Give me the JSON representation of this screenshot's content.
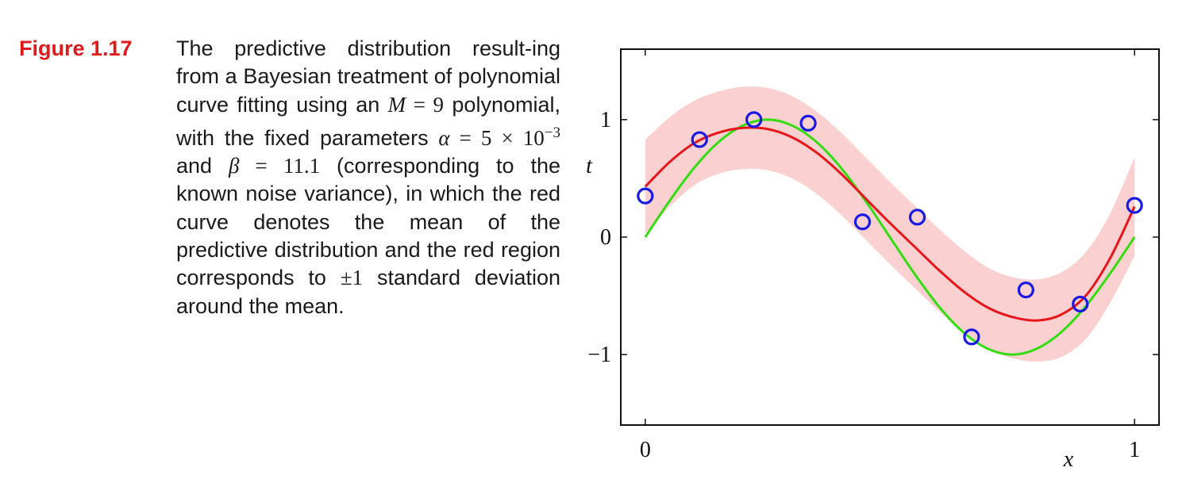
{
  "caption": {
    "label": "Figure 1.17",
    "t1": "The predictive distribution result-ing from a Bayesian treatment of polynomial curve fitting using an ",
    "m_sym": "M",
    "eq1": " = 9",
    "t2": " polynomial, with the fixed parameters ",
    "alpha_sym": "α",
    "eq2": " = 5 × 10",
    "exp": "−3",
    "t3": " and ",
    "beta_sym": "β",
    "eq3": " = 11.1",
    "t4": " (corresponding to the known noise variance), in which the red curve denotes the mean of the predictive distribution and the red region corresponds to ",
    "pm": "±1",
    "t5": " standard deviation around the mean."
  },
  "chart_data": {
    "type": "line",
    "xlabel": "x",
    "ylabel": "t",
    "xlim": [
      -0.05,
      1.05
    ],
    "ylim": [
      -1.6,
      1.6
    ],
    "xticks": [
      {
        "value": 0,
        "label": "0"
      },
      {
        "value": 1,
        "label": "1"
      }
    ],
    "yticks": [
      {
        "value": -1,
        "label": "−1"
      },
      {
        "value": 0,
        "label": "0"
      },
      {
        "value": 1,
        "label": "1"
      }
    ],
    "colors": {
      "mean": "#e8161b",
      "band": "#fbd0d0",
      "truth": "#33dd11",
      "points": "#1a1ae6"
    },
    "x": [
      0,
      0.05,
      0.1,
      0.15,
      0.2,
      0.25,
      0.3,
      0.35,
      0.4,
      0.45,
      0.5,
      0.55,
      0.6,
      0.65,
      0.7,
      0.75,
      0.8,
      0.85,
      0.9,
      0.95,
      1.0
    ],
    "series": [
      {
        "role": "mean",
        "values": [
          0.43,
          0.64,
          0.8,
          0.89,
          0.93,
          0.92,
          0.85,
          0.72,
          0.54,
          0.33,
          0.12,
          -0.08,
          -0.28,
          -0.46,
          -0.6,
          -0.68,
          -0.71,
          -0.66,
          -0.5,
          -0.18,
          0.26
        ]
      },
      {
        "role": "upper",
        "values": [
          0.83,
          1.02,
          1.16,
          1.24,
          1.28,
          1.27,
          1.2,
          1.07,
          0.89,
          0.68,
          0.47,
          0.27,
          0.07,
          -0.11,
          -0.26,
          -0.34,
          -0.36,
          -0.3,
          -0.13,
          0.2,
          0.68
        ]
      },
      {
        "role": "lower",
        "values": [
          0.03,
          0.26,
          0.44,
          0.54,
          0.58,
          0.57,
          0.5,
          0.37,
          0.19,
          -0.02,
          -0.23,
          -0.43,
          -0.63,
          -0.81,
          -0.95,
          -1.03,
          -1.06,
          -1.02,
          -0.87,
          -0.56,
          -0.16
        ]
      },
      {
        "role": "truth",
        "values": [
          0,
          0.31,
          0.59,
          0.81,
          0.95,
          1.0,
          0.95,
          0.81,
          0.59,
          0.31,
          0,
          -0.31,
          -0.59,
          -0.81,
          -0.95,
          -1.0,
          -0.95,
          -0.81,
          -0.59,
          -0.31,
          0
        ]
      }
    ],
    "points": [
      {
        "x": 0.0,
        "y": 0.35
      },
      {
        "x": 0.111,
        "y": 0.83
      },
      {
        "x": 0.222,
        "y": 1.0
      },
      {
        "x": 0.333,
        "y": 0.97
      },
      {
        "x": 0.444,
        "y": 0.13
      },
      {
        "x": 0.556,
        "y": 0.17
      },
      {
        "x": 0.667,
        "y": -0.85
      },
      {
        "x": 0.778,
        "y": -0.45
      },
      {
        "x": 0.889,
        "y": -0.57
      },
      {
        "x": 1.0,
        "y": 0.27
      }
    ]
  }
}
